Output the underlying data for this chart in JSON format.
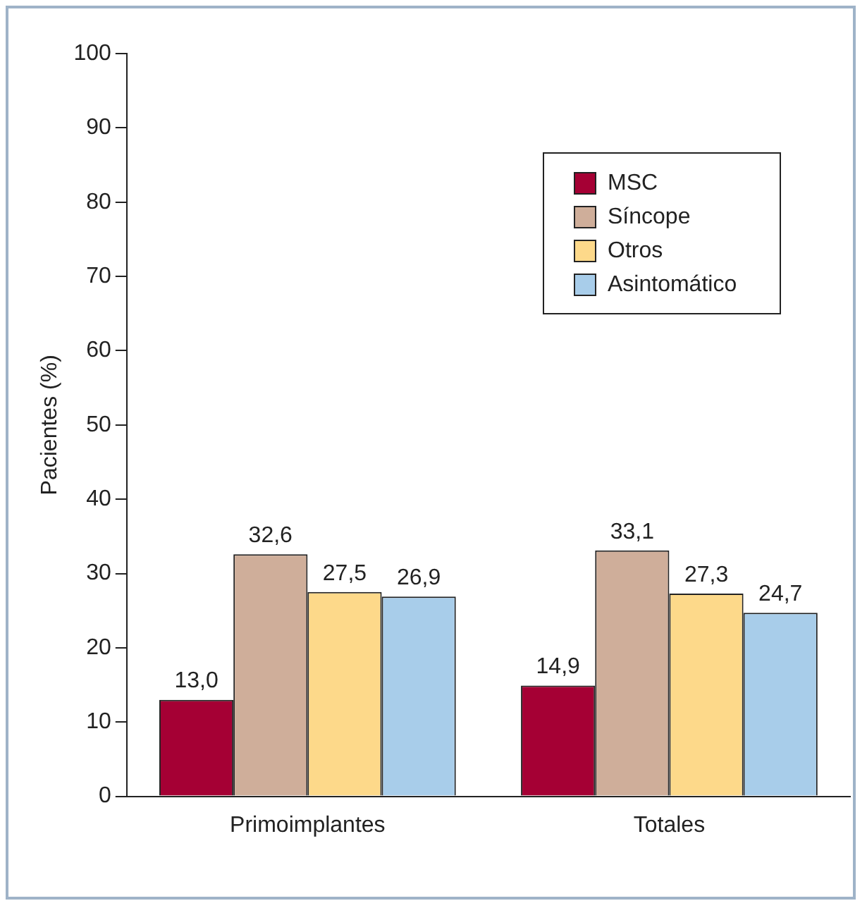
{
  "chart_data": {
    "type": "bar",
    "ylabel": "Pacientes (%)",
    "categories": [
      "Primoimplantes",
      "Totales"
    ],
    "series": [
      {
        "name": "MSC",
        "color": "#a50034",
        "values": [
          13.0,
          14.9
        ],
        "value_labels": [
          "13,0",
          "14,9"
        ]
      },
      {
        "name": "Síncope",
        "color": "#cfae9a",
        "values": [
          32.6,
          33.1
        ],
        "value_labels": [
          "32,6",
          "33,1"
        ]
      },
      {
        "name": "Otros",
        "color": "#fdd98a",
        "values": [
          27.5,
          27.3
        ],
        "value_labels": [
          "27,5",
          "27,3"
        ]
      },
      {
        "name": "Asintomático",
        "color": "#a8cdea",
        "values": [
          26.9,
          24.7
        ],
        "value_labels": [
          "26,9",
          "24,7"
        ]
      }
    ],
    "ylim": [
      0,
      100
    ],
    "yticks": [
      0,
      10,
      20,
      30,
      40,
      50,
      60,
      70,
      80,
      90,
      100
    ],
    "grid": false,
    "legend": "top right"
  }
}
